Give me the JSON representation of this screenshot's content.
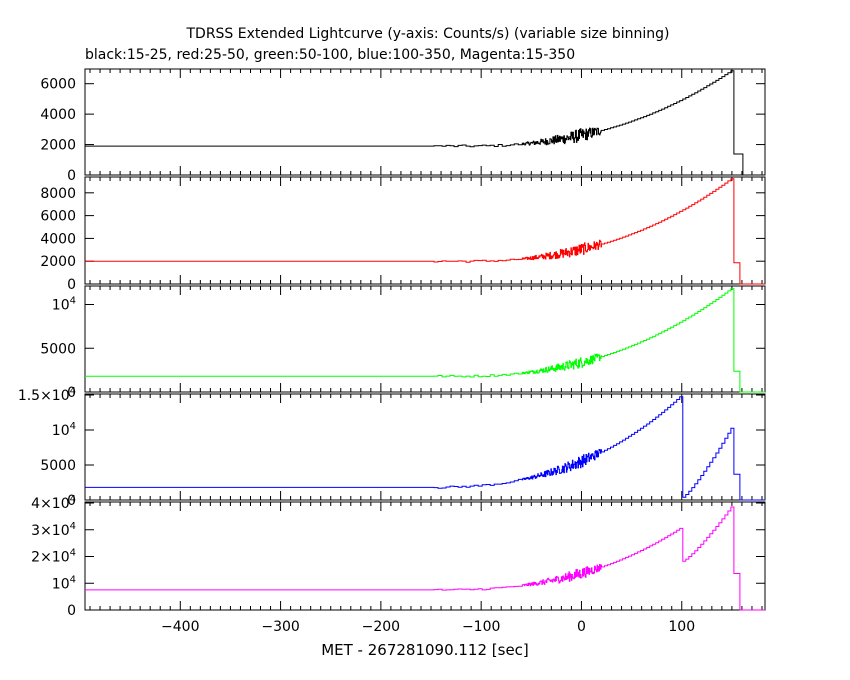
{
  "chart_data": {
    "type": "line",
    "title": "TDRSS Extended Lightcurve (y-axis: Counts/s) (variable size binning)",
    "subtitle": "black:15-25, red:25-50, green:50-100, blue:100-350, Magenta:15-350",
    "xlabel": "MET - 267281090.112 [sec]",
    "xlim": [
      -495,
      183
    ],
    "xticks": [
      -400,
      -300,
      -200,
      -100,
      0,
      100
    ],
    "x_tick_labels": [
      "−400",
      "−300",
      "−200",
      "−100",
      "0",
      "100"
    ],
    "grid": false,
    "panels": [
      {
        "name": "black:15-25",
        "color": "#000000",
        "ylim": [
          0,
          6900
        ],
        "yticks": [
          {
            "value": 0,
            "label": "0"
          },
          {
            "value": 2000,
            "label": "2000"
          },
          {
            "value": 4000,
            "label": "4000"
          },
          {
            "value": 6000,
            "label": "6000"
          }
        ],
        "profile": {
          "base": 1900,
          "rise_start": -120,
          "peak1_x": null,
          "peak1_y": null,
          "drop1_y": null,
          "peak2_x": 150,
          "peak2_y": 6900,
          "end_x": 160,
          "tail_y": 0,
          "noise": 250
        }
      },
      {
        "name": "red:25-50",
        "color": "#ff0000",
        "ylim": [
          0,
          9300
        ],
        "yticks": [
          {
            "value": 0,
            "label": "0"
          },
          {
            "value": 2000,
            "label": "2000"
          },
          {
            "value": 4000,
            "label": "4000"
          },
          {
            "value": 6000,
            "label": "6000"
          },
          {
            "value": 8000,
            "label": "8000"
          }
        ],
        "profile": {
          "base": 2000,
          "rise_start": -120,
          "peak1_x": null,
          "peak1_y": null,
          "drop1_y": null,
          "peak2_x": 150,
          "peak2_y": 9300,
          "end_x": 156,
          "tail_y": 0,
          "noise": 300
        }
      },
      {
        "name": "green:50-100",
        "color": "#00ff00",
        "ylim": [
          0,
          12000
        ],
        "yticks": [
          {
            "value": 0,
            "label": "0"
          },
          {
            "value": 5000,
            "label": "5000"
          },
          {
            "value": 10000,
            "label": "10",
            "exp": "4"
          }
        ],
        "profile": {
          "base": 1800,
          "rise_start": -130,
          "peak1_x": null,
          "peak1_y": null,
          "drop1_y": null,
          "peak2_x": 150,
          "peak2_y": 11900,
          "end_x": 157,
          "tail_y": 0,
          "noise": 350
        }
      },
      {
        "name": "blue:100-350",
        "color": "#0000ff",
        "ylim": [
          0,
          15000
        ],
        "yticks": [
          {
            "value": 0,
            "label": "0"
          },
          {
            "value": 5000,
            "label": "5000"
          },
          {
            "value": 10000,
            "label": "10",
            "exp": "4"
          },
          {
            "value": 15000,
            "label": "1.5×10",
            "exp": "4"
          }
        ],
        "profile": {
          "base": 1800,
          "rise_start": -160,
          "peak1_x": 100,
          "peak1_y": 15000,
          "drop1_y": 300,
          "peak2_x": 150,
          "peak2_y": 10500,
          "end_x": 156,
          "tail_y": 0,
          "noise": 500
        }
      },
      {
        "name": "Magenta:15-350",
        "color": "#ff00ff",
        "ylim": [
          0,
          40000
        ],
        "yticks": [
          {
            "value": 0,
            "label": "0"
          },
          {
            "value": 10000,
            "label": "10",
            "exp": "4"
          },
          {
            "value": 20000,
            "label": "2×10",
            "exp": "4"
          },
          {
            "value": 30000,
            "label": "3×10",
            "exp": "4"
          },
          {
            "value": 40000,
            "label": "4×10",
            "exp": "4"
          }
        ],
        "profile": {
          "base": 7500,
          "rise_start": -150,
          "peak1_x": 100,
          "peak1_y": 31000,
          "drop1_y": 18000,
          "peak2_x": 150,
          "peak2_y": 39000,
          "end_x": 156,
          "tail_y": 0,
          "noise": 1200
        }
      }
    ]
  }
}
